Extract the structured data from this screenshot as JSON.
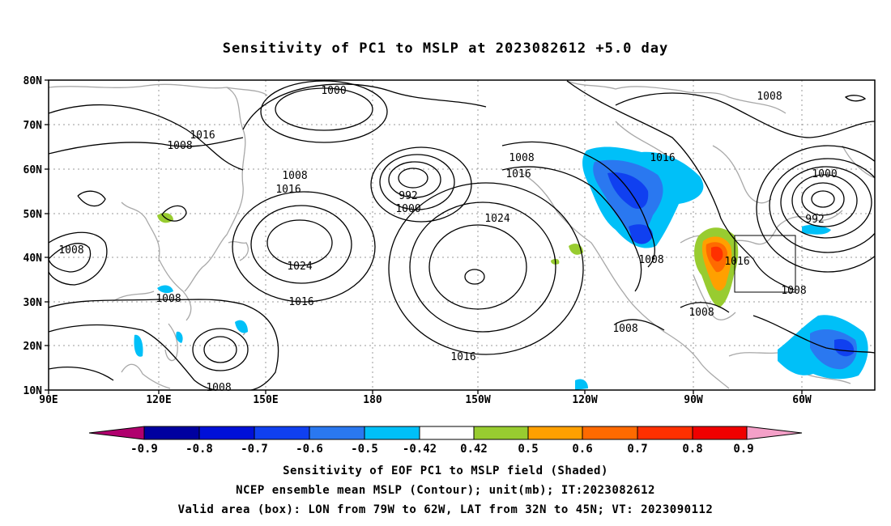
{
  "title": "Sensitivity of PC1 to MSLP at 2023082612 +5.0 day",
  "lat_labels": [
    "80N",
    "70N",
    "60N",
    "50N",
    "40N",
    "30N",
    "20N",
    "10N"
  ],
  "lon_labels": [
    "90E",
    "120E",
    "150E",
    "180",
    "150W",
    "120W",
    "90W",
    "60W"
  ],
  "contour_labels": [
    "1000",
    "1008",
    "1016",
    "1008",
    "1008",
    "1016",
    "992",
    "1000",
    "1008",
    "1016",
    "1024",
    "1016",
    "1024",
    "1016",
    "1008",
    "1008",
    "1016",
    "1008",
    "1016",
    "1008",
    "1008",
    "1008",
    "1000",
    "992",
    "1008",
    "1008"
  ],
  "colorbar": {
    "labels": [
      "-0.9",
      "-0.8",
      "-0.7",
      "-0.6",
      "-0.5",
      "-0.42",
      "0.42",
      "0.5",
      "0.6",
      "0.7",
      "0.8",
      "0.9"
    ],
    "colors": [
      "#b0006e",
      "#0000a0",
      "#0010d8",
      "#1040f0",
      "#2a78f0",
      "#00c0f8",
      "#ffffff",
      "#98cc30",
      "#ffa000",
      "#ff6a00",
      "#ff3000",
      "#f00000",
      "#f4a0c8"
    ]
  },
  "valid_box": {
    "lon": [
      -79,
      -62
    ],
    "lat": [
      32,
      45
    ]
  },
  "captions": [
    "Sensitivity of EOF PC1 to MSLP field (Shaded)",
    "NCEP ensemble mean MSLP (Contour); unit(mb); IT:2023082612",
    "Valid area (box): LON from 79W to 62W, LAT from 32N to 45N; VT: 2023090112"
  ]
}
